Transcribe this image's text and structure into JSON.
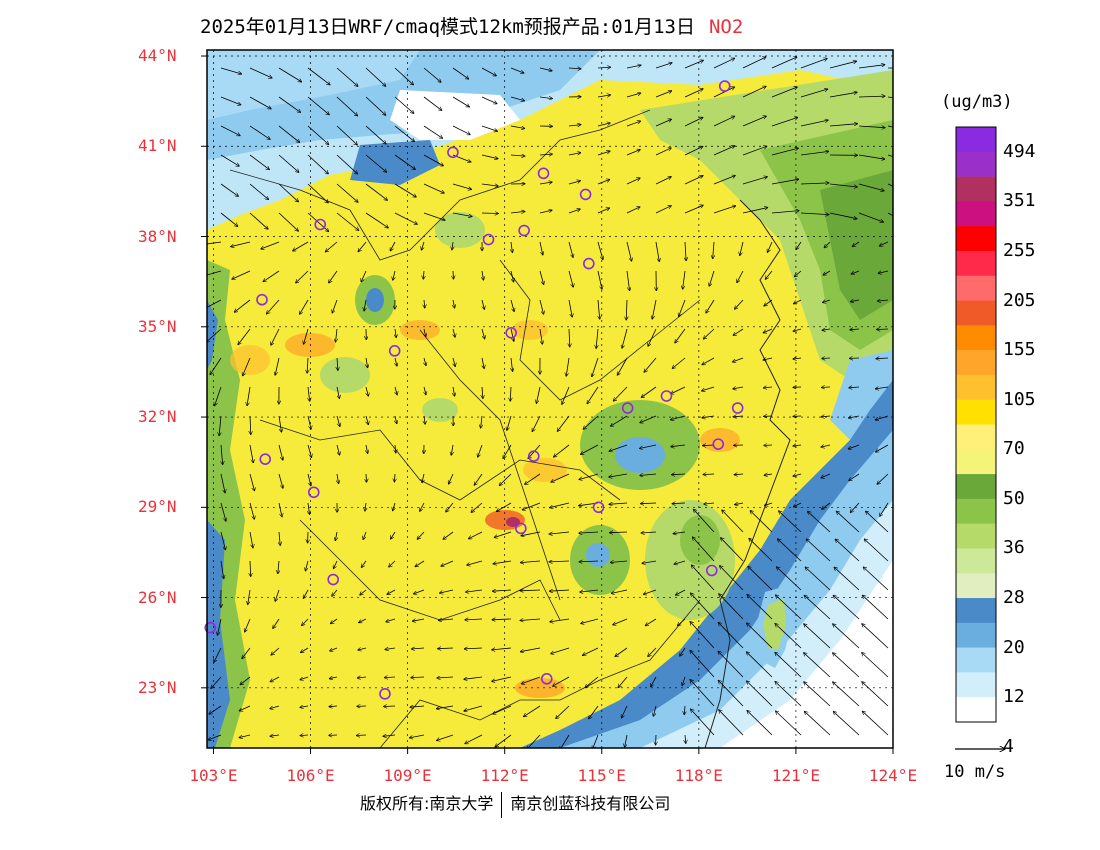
{
  "title": {
    "text": "2025年01月13日WRF/cmaq模式12km预报产品:01月13日",
    "pollutant": "NO2"
  },
  "axes": {
    "lat_labels": [
      "44°N",
      "41°N",
      "38°N",
      "35°N",
      "32°N",
      "29°N",
      "26°N",
      "23°N"
    ],
    "lat_values": [
      44,
      41,
      38,
      35,
      32,
      29,
      26,
      23
    ],
    "lon_labels": [
      "103°E",
      "106°E",
      "109°E",
      "112°E",
      "115°E",
      "118°E",
      "121°E",
      "124°E"
    ],
    "lon_values": [
      103,
      106,
      109,
      112,
      115,
      118,
      121,
      124
    ],
    "lon_range": [
      102.8,
      124
    ],
    "lat_range": [
      21,
      44.2
    ],
    "label_color": "#e8323c"
  },
  "colorbar": {
    "unit": "(ug/m3)",
    "labels": [
      "494",
      "351",
      "255",
      "205",
      "155",
      "105",
      "70",
      "50",
      "36",
      "28",
      "20",
      "12",
      "4"
    ],
    "colors": [
      "#8a2be2",
      "#9b30c8",
      "#b03060",
      "#cc1080",
      "#ff0000",
      "#ff2a4a",
      "#ff6a6a",
      "#f05a28",
      "#ff8c00",
      "#ffa62a",
      "#ffc030",
      "#ffe000",
      "#fff07a",
      "#f4f478",
      "#6aa83a",
      "#8cc44a",
      "#b5da6a",
      "#cde898",
      "#e0eec0",
      "#4a8ac8",
      "#6aaee0",
      "#a8daf5",
      "#d2eefa",
      "#ffffff"
    ]
  },
  "wind_legend": {
    "label": "10 m/s"
  },
  "stations": [
    {
      "lon": 118.8,
      "lat": 43.0
    },
    {
      "lon": 110.4,
      "lat": 40.8
    },
    {
      "lon": 113.2,
      "lat": 40.1
    },
    {
      "lon": 114.5,
      "lat": 39.4
    },
    {
      "lon": 106.3,
      "lat": 38.4
    },
    {
      "lon": 111.5,
      "lat": 37.9
    },
    {
      "lon": 112.6,
      "lat": 38.2
    },
    {
      "lon": 114.6,
      "lat": 37.1
    },
    {
      "lon": 104.5,
      "lat": 35.9
    },
    {
      "lon": 108.6,
      "lat": 34.2
    },
    {
      "lon": 112.2,
      "lat": 34.8
    },
    {
      "lon": 117.0,
      "lat": 32.7
    },
    {
      "lon": 115.8,
      "lat": 32.3
    },
    {
      "lon": 119.2,
      "lat": 32.3
    },
    {
      "lon": 118.6,
      "lat": 31.1
    },
    {
      "lon": 104.6,
      "lat": 30.6
    },
    {
      "lon": 112.9,
      "lat": 30.7
    },
    {
      "lon": 106.1,
      "lat": 29.5
    },
    {
      "lon": 114.9,
      "lat": 29.0
    },
    {
      "lon": 112.5,
      "lat": 28.3
    },
    {
      "lon": 106.7,
      "lat": 26.6
    },
    {
      "lon": 118.4,
      "lat": 26.9
    },
    {
      "lon": 102.9,
      "lat": 25.0
    },
    {
      "lon": 108.3,
      "lat": 22.8
    },
    {
      "lon": 113.3,
      "lat": 23.3
    }
  ],
  "copyright": {
    "left": "版权所有:南京大学",
    "right": "南京创蓝科技有限公司"
  }
}
